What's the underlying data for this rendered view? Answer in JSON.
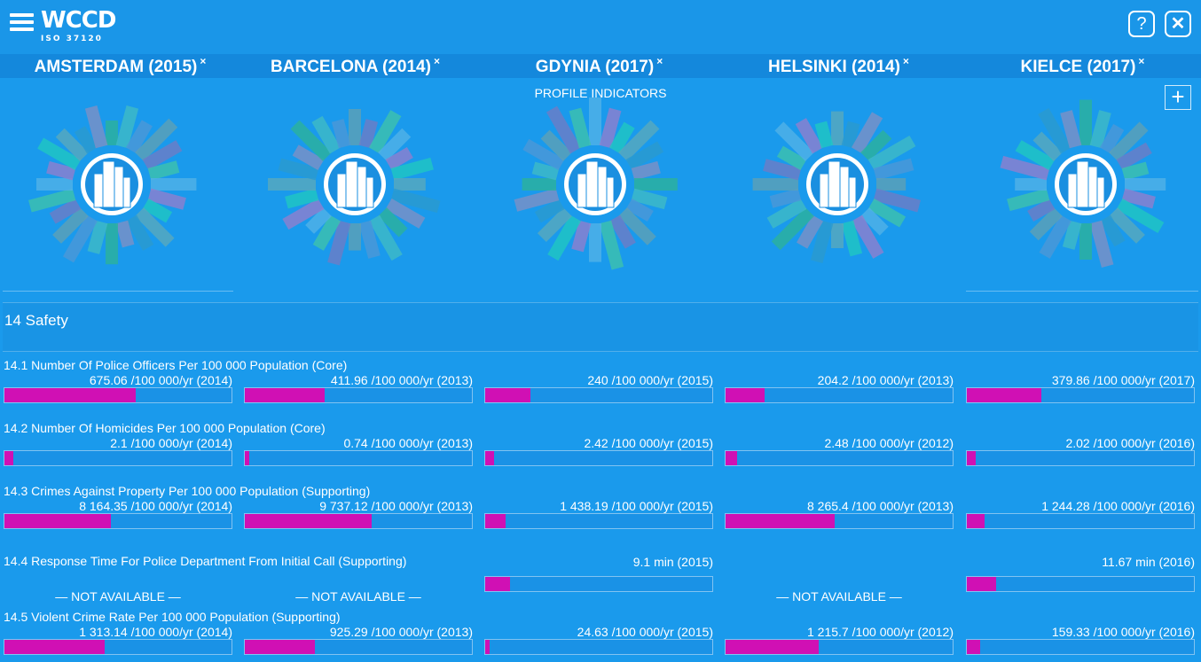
{
  "app": {
    "logo": "WCCD",
    "sub": "ISO 37120",
    "help": "?",
    "close": "✕"
  },
  "cities": [
    {
      "name": "AMSTERDAM (2015)"
    },
    {
      "name": "BARCELONA (2014)"
    },
    {
      "name": "GDYNIA (2017)"
    },
    {
      "name": "HELSINKI (2014)"
    },
    {
      "name": "KIELCE (2017)"
    }
  ],
  "remove_mark": "×",
  "profile_label": "PROFILE INDICATORS",
  "add_label": "+",
  "colors": {
    "bar_fill": "#d010b4",
    "background": "#1a9aec"
  },
  "section": {
    "title": "14 Safety"
  },
  "indicators": [
    {
      "label": "14.1 Number Of Police Officers Per 100 000 Population (Core)",
      "values": [
        {
          "text": "675.06 /100 000/yr (2014)",
          "fill": 0.58
        },
        {
          "text": "411.96 /100 000/yr (2013)",
          "fill": 0.35
        },
        {
          "text": "240 /100 000/yr (2015)",
          "fill": 0.2
        },
        {
          "text": "204.2 /100 000/yr (2013)",
          "fill": 0.17
        },
        {
          "text": "379.86 /100 000/yr (2017)",
          "fill": 0.33
        }
      ]
    },
    {
      "label": "14.2 Number Of Homicides Per 100 000 Population (Core)",
      "values": [
        {
          "text": "2.1 /100 000/yr (2014)",
          "fill": 0.04
        },
        {
          "text": "0.74 /100 000/yr (2013)",
          "fill": 0.02
        },
        {
          "text": "2.42 /100 000/yr (2015)",
          "fill": 0.04
        },
        {
          "text": "2.48 /100 000/yr (2012)",
          "fill": 0.05
        },
        {
          "text": "2.02 /100 000/yr (2016)",
          "fill": 0.04
        }
      ]
    },
    {
      "label": "14.3 Crimes Against Property Per 100 000 Population (Supporting)",
      "values": [
        {
          "text": "8 164.35 /100 000/yr (2014)",
          "fill": 0.47
        },
        {
          "text": "9 737.12 /100 000/yr (2013)",
          "fill": 0.56
        },
        {
          "text": "1 438.19 /100 000/yr (2015)",
          "fill": 0.09
        },
        {
          "text": "8 265.4 /100 000/yr (2013)",
          "fill": 0.48
        },
        {
          "text": "1 244.28 /100 000/yr (2016)",
          "fill": 0.08
        }
      ]
    },
    {
      "label": "14.4 Response Time For Police Department From Initial Call (Supporting)",
      "values": [
        {
          "text": "— NOT AVAILABLE —",
          "na": true
        },
        {
          "text": "— NOT AVAILABLE —",
          "na": true
        },
        {
          "text": "9.1 min (2015)",
          "fill": 0.11
        },
        {
          "text": "— NOT AVAILABLE —",
          "na": true
        },
        {
          "text": "11.67 min (2016)",
          "fill": 0.13
        }
      ]
    },
    {
      "label": "14.5 Violent Crime Rate Per 100 000 Population (Supporting)",
      "values": [
        {
          "text": "1 313.14 /100 000/yr (2014)",
          "fill": 0.44
        },
        {
          "text": "925.29 /100 000/yr (2013)",
          "fill": 0.31
        },
        {
          "text": "24.63 /100 000/yr (2015)",
          "fill": 0.02
        },
        {
          "text": "1 215.7 /100 000/yr (2012)",
          "fill": 0.41
        },
        {
          "text": "159.33 /100 000/yr (2016)",
          "fill": 0.06
        }
      ]
    }
  ],
  "wheel_colors": [
    "#2cb0a0",
    "#3db8c8",
    "#4a98d8",
    "#5aa0b8",
    "#6a7ec8",
    "#3cc0b0",
    "#4fb0e8",
    "#8a80d0",
    "#20c4c4",
    "#56a8c0",
    "#2a9ad0",
    "#7890c8"
  ]
}
